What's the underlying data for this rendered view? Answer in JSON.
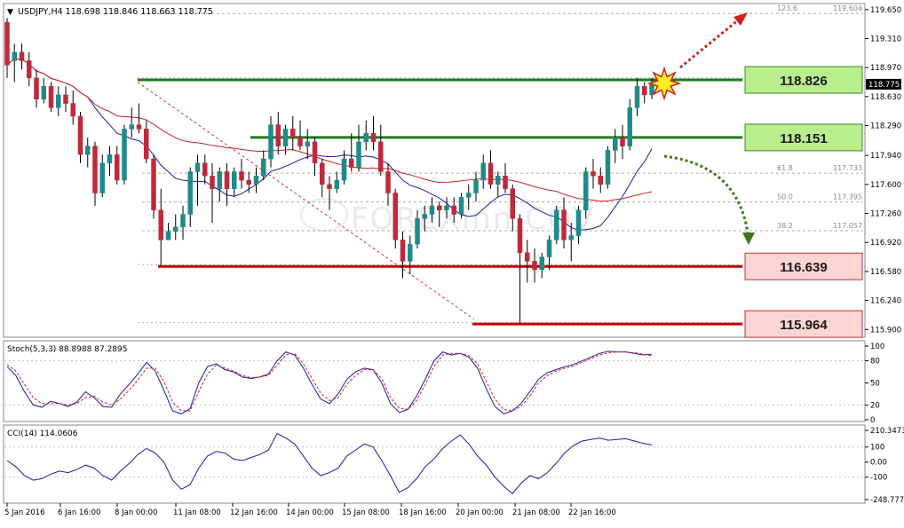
{
  "header": {
    "symbol_line": "USDJPY,H4  118.698 118.846 118.663 118.775"
  },
  "watermark": "FOREXinn.COV",
  "colors": {
    "bull": "#1f8a8a",
    "bear": "#c0283c",
    "ma_fast": "#1a1aa8",
    "ma_slow": "#d02020",
    "resistance": "#1e7a1e",
    "support": "#c00000",
    "box_green": "#b8ee8c",
    "box_red": "#fbd4d4"
  },
  "chart_data": [
    {
      "type": "candlestick",
      "title": "USDJPY,H4",
      "ohlc_header": "118.698 118.846 118.663 118.775",
      "ylim": [
        115.83,
        119.7
      ],
      "y_ticks": [
        "119.650",
        "119.310",
        "118.970",
        "118.630",
        "118.290",
        "117.940",
        "117.600",
        "117.260",
        "116.920",
        "116.580",
        "116.240",
        "115.900"
      ],
      "current_price": "118.775",
      "x_labels": [
        "5 Jan 2016",
        "6 Jan 16:00",
        "8 Jan 00:00",
        "11 Jan 08:00",
        "12 Jan 16:00",
        "14 Jan 00:00",
        "15 Jan 08:00",
        "18 Jan 16:00",
        "20 Jan 00:00",
        "21 Jan 08:00",
        "22 Jan 16:00"
      ],
      "candles": [
        [
          119.5,
          119.55,
          118.85,
          119.0
        ],
        [
          119.05,
          119.25,
          118.8,
          119.15
        ],
        [
          119.15,
          119.25,
          118.95,
          119.05
        ],
        [
          119.05,
          119.15,
          118.75,
          118.85
        ],
        [
          118.85,
          118.95,
          118.5,
          118.6
        ],
        [
          118.6,
          118.85,
          118.55,
          118.75
        ],
        [
          118.75,
          118.8,
          118.45,
          118.5
        ],
        [
          118.5,
          118.75,
          118.4,
          118.65
        ],
        [
          118.65,
          118.75,
          118.45,
          118.55
        ],
        [
          118.55,
          118.7,
          118.3,
          118.4
        ],
        [
          118.4,
          118.45,
          117.85,
          117.95
        ],
        [
          117.95,
          118.15,
          117.8,
          118.05
        ],
        [
          118.05,
          118.1,
          117.35,
          117.5
        ],
        [
          117.5,
          117.95,
          117.45,
          117.85
        ],
        [
          117.85,
          118.05,
          117.7,
          117.95
        ],
        [
          117.95,
          118.05,
          117.6,
          117.65
        ],
        [
          117.65,
          118.3,
          117.6,
          118.25
        ],
        [
          118.25,
          118.5,
          118.15,
          118.3
        ],
        [
          118.3,
          118.55,
          118.2,
          118.25
        ],
        [
          118.25,
          118.35,
          117.85,
          117.9
        ],
        [
          117.9,
          117.95,
          117.2,
          117.3
        ],
        [
          117.3,
          117.55,
          116.65,
          116.95
        ],
        [
          116.95,
          117.15,
          116.95,
          117.05
        ],
        [
          117.05,
          117.25,
          116.95,
          117.1
        ],
        [
          117.1,
          117.35,
          116.95,
          117.25
        ],
        [
          117.25,
          117.8,
          117.1,
          117.75
        ],
        [
          117.75,
          117.95,
          117.35,
          117.85
        ],
        [
          117.85,
          117.95,
          117.6,
          117.7
        ],
        [
          117.7,
          117.85,
          117.15,
          117.55
        ],
        [
          117.55,
          117.8,
          117.4,
          117.75
        ],
        [
          117.75,
          117.85,
          117.35,
          117.55
        ],
        [
          117.55,
          117.8,
          117.45,
          117.75
        ],
        [
          117.75,
          117.9,
          117.55,
          117.65
        ],
        [
          117.65,
          117.75,
          117.5,
          117.6
        ],
        [
          117.6,
          117.8,
          117.5,
          117.7
        ],
        [
          117.7,
          118.0,
          117.65,
          117.9
        ],
        [
          117.9,
          118.4,
          117.8,
          118.3
        ],
        [
          118.3,
          118.45,
          117.95,
          118.05
        ],
        [
          118.05,
          118.3,
          117.95,
          118.25
        ],
        [
          118.25,
          118.4,
          118.0,
          118.15
        ],
        [
          118.15,
          118.35,
          118.0,
          118.05
        ],
        [
          118.05,
          118.25,
          117.9,
          118.1
        ],
        [
          118.1,
          118.15,
          117.7,
          117.85
        ],
        [
          117.85,
          117.9,
          117.45,
          117.6
        ],
        [
          117.6,
          117.7,
          117.3,
          117.55
        ],
        [
          117.55,
          117.75,
          117.5,
          117.65
        ],
        [
          117.65,
          118.0,
          117.6,
          117.9
        ],
        [
          117.9,
          118.2,
          117.75,
          117.8
        ],
        [
          117.8,
          118.3,
          117.75,
          118.1
        ],
        [
          118.1,
          118.35,
          118.0,
          118.2
        ],
        [
          118.2,
          118.4,
          118.0,
          118.1
        ],
        [
          118.1,
          118.3,
          117.7,
          117.75
        ],
        [
          117.75,
          117.85,
          117.35,
          117.5
        ],
        [
          117.5,
          117.55,
          116.85,
          116.95
        ],
        [
          116.95,
          117.05,
          116.5,
          116.7
        ],
        [
          116.7,
          117.0,
          116.55,
          116.9
        ],
        [
          116.9,
          117.3,
          116.85,
          117.2
        ],
        [
          117.2,
          117.35,
          117.05,
          117.25
        ],
        [
          117.25,
          117.45,
          117.15,
          117.35
        ],
        [
          117.35,
          117.4,
          117.1,
          117.3
        ],
        [
          117.3,
          117.45,
          117.2,
          117.35
        ],
        [
          117.35,
          117.45,
          117.15,
          117.25
        ],
        [
          117.25,
          117.5,
          117.2,
          117.45
        ],
        [
          117.45,
          117.6,
          117.3,
          117.5
        ],
        [
          117.5,
          117.75,
          117.4,
          117.65
        ],
        [
          117.65,
          117.95,
          117.55,
          117.85
        ],
        [
          117.85,
          118.0,
          117.55,
          117.6
        ],
        [
          117.6,
          117.75,
          117.45,
          117.7
        ],
        [
          117.7,
          117.85,
          117.5,
          117.55
        ],
        [
          117.55,
          117.6,
          117.05,
          117.2
        ],
        [
          117.2,
          117.25,
          115.96,
          116.8
        ],
        [
          116.8,
          116.95,
          116.45,
          116.7
        ],
        [
          116.7,
          116.85,
          116.45,
          116.6
        ],
        [
          116.6,
          116.8,
          116.5,
          116.75
        ],
        [
          116.75,
          117.0,
          116.6,
          116.95
        ],
        [
          116.95,
          117.35,
          116.9,
          117.3
        ],
        [
          117.3,
          117.45,
          116.85,
          116.95
        ],
        [
          116.95,
          117.15,
          116.7,
          117.0
        ],
        [
          117.0,
          117.35,
          116.9,
          117.3
        ],
        [
          117.3,
          117.8,
          117.2,
          117.75
        ],
        [
          117.75,
          117.9,
          117.55,
          117.7
        ],
        [
          117.7,
          117.8,
          117.5,
          117.6
        ],
        [
          117.6,
          118.05,
          117.55,
          118.0
        ],
        [
          118.0,
          118.25,
          117.85,
          118.15
        ],
        [
          118.15,
          118.3,
          117.9,
          118.05
        ],
        [
          118.05,
          118.6,
          118.0,
          118.5
        ],
        [
          118.5,
          118.85,
          118.4,
          118.75
        ],
        [
          118.75,
          118.8,
          118.55,
          118.65
        ],
        [
          118.65,
          118.85,
          118.6,
          118.78
        ]
      ],
      "moving_averages": [
        {
          "name": "ma-fast",
          "color": "#1a1aa8",
          "period": 12
        },
        {
          "name": "ma-slow",
          "color": "#d02020",
          "period": 40
        }
      ],
      "levels": [
        {
          "name": "resistance-1",
          "price": 118.826,
          "label": "118.826",
          "kind": "resistance"
        },
        {
          "name": "resistance-2",
          "price": 118.151,
          "label": "118.151",
          "kind": "resistance"
        },
        {
          "name": "support-1",
          "price": 116.639,
          "label": "116.639",
          "kind": "support"
        },
        {
          "name": "support-2",
          "price": 115.964,
          "label": "115.964",
          "kind": "support"
        }
      ],
      "fibonacci": [
        {
          "level": "123.6",
          "price": "119.604",
          "y": 119.604
        },
        {
          "level": "61.8",
          "price": "117.733",
          "y": 117.733
        },
        {
          "level": "50.0",
          "price": "117.395",
          "y": 117.395
        },
        {
          "level": "38.2",
          "price": "117.057",
          "y": 117.057
        }
      ]
    },
    {
      "type": "line",
      "title": "Stoch(5,3,3) 88.8988 87.2895",
      "ylim": [
        0,
        100
      ],
      "y_ticks": [
        "100",
        "80",
        "50",
        "20",
        "0"
      ],
      "series": [
        {
          "name": "main",
          "color": "#1a1aa8",
          "values": [
            72,
            60,
            38,
            20,
            17,
            25,
            22,
            18,
            24,
            38,
            30,
            18,
            17,
            35,
            48,
            62,
            78,
            66,
            40,
            12,
            8,
            15,
            50,
            72,
            76,
            68,
            65,
            58,
            56,
            58,
            62,
            80,
            92,
            88,
            70,
            48,
            28,
            22,
            35,
            55,
            65,
            70,
            68,
            50,
            22,
            10,
            14,
            32,
            55,
            80,
            92,
            88,
            90,
            85,
            70,
            42,
            18,
            8,
            12,
            22,
            38,
            55,
            64,
            68,
            72,
            75,
            80,
            85,
            90,
            93,
            92,
            92,
            90,
            88,
            89
          ]
        },
        {
          "name": "signal",
          "color": "#d02020",
          "values": [
            75,
            66,
            48,
            30,
            22,
            22,
            22,
            20,
            22,
            30,
            32,
            24,
            20,
            28,
            40,
            54,
            70,
            70,
            52,
            24,
            12,
            12,
            38,
            62,
            74,
            70,
            66,
            60,
            57,
            58,
            60,
            74,
            88,
            90,
            76,
            56,
            36,
            26,
            30,
            48,
            60,
            68,
            68,
            56,
            30,
            16,
            14,
            26,
            48,
            72,
            88,
            90,
            90,
            87,
            76,
            52,
            28,
            14,
            12,
            18,
            32,
            50,
            60,
            66,
            70,
            73,
            78,
            83,
            88,
            91,
            92,
            92,
            91,
            89,
            87
          ]
        }
      ]
    },
    {
      "type": "line",
      "title": "CCI(14) 114.0606",
      "ylim": [
        -248.7778,
        210.3473
      ],
      "y_ticks": [
        "210.3473",
        "100",
        "0.00",
        "-100",
        "-248.7778"
      ],
      "series": [
        {
          "name": "cci",
          "color": "#1a1aa8",
          "values": [
            10,
            -30,
            -90,
            -120,
            -110,
            -80,
            -60,
            -70,
            -50,
            -20,
            -40,
            -90,
            -120,
            -60,
            -10,
            50,
            90,
            60,
            0,
            -120,
            -180,
            -150,
            -40,
            40,
            70,
            60,
            20,
            10,
            30,
            50,
            80,
            190,
            160,
            120,
            40,
            -40,
            -90,
            -70,
            -40,
            40,
            80,
            120,
            100,
            10,
            -90,
            -200,
            -170,
            -110,
            -30,
            20,
            90,
            140,
            180,
            120,
            40,
            -20,
            -100,
            -160,
            -210,
            -140,
            -90,
            -110,
            -70,
            -10,
            60,
            110,
            140,
            150,
            160,
            145,
            150,
            155,
            140,
            125,
            114
          ]
        }
      ]
    }
  ]
}
